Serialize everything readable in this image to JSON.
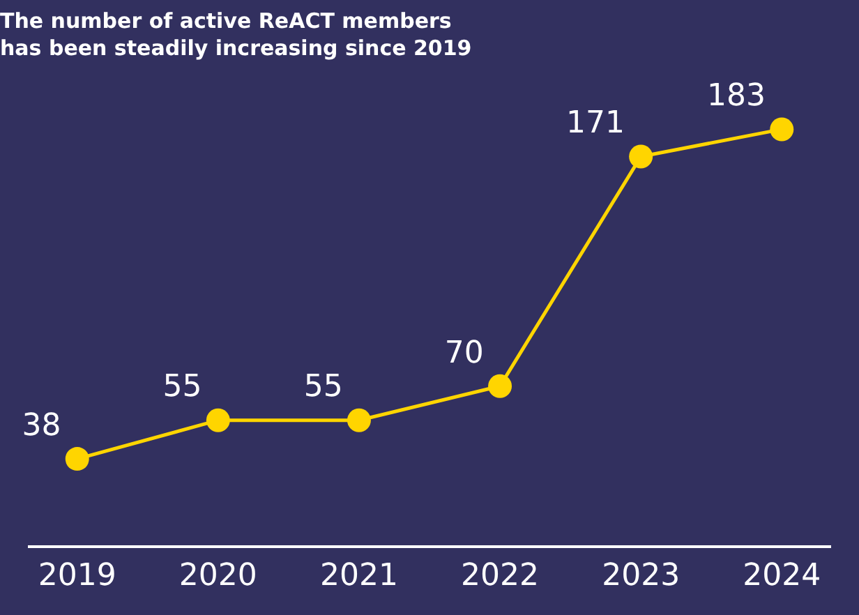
{
  "chart_data": {
    "type": "line",
    "title": "The number of active ReACT members\nhas been steadily increasing since 2019",
    "categories": [
      "2019",
      "2020",
      "2021",
      "2022",
      "2023",
      "2024"
    ],
    "series": [
      {
        "color": "#ffd500",
        "values": [
          38,
          55,
          55,
          70,
          171,
          183
        ]
      }
    ],
    "data_labels": true,
    "marker": "circle",
    "line_style": "solid",
    "grid": false,
    "legend": false,
    "tick_labels": "x"
  }
}
